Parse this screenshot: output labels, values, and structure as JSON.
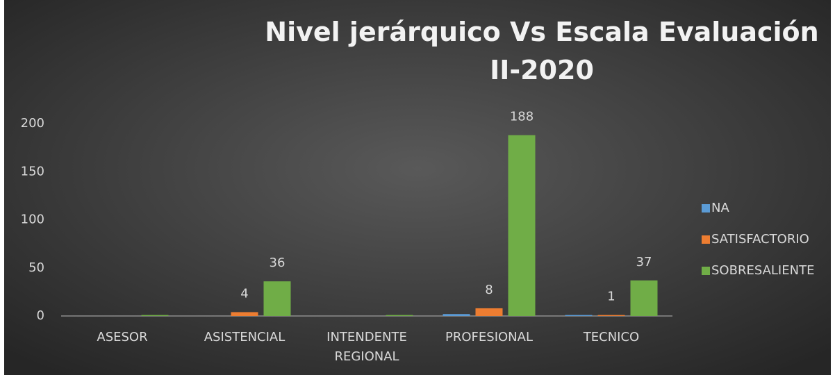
{
  "chart_data": {
    "type": "bar",
    "title": "Nivel jerárquico Vs Escala Evaluación II-2020",
    "categories": [
      "ASESOR",
      "ASISTENCIAL",
      "INTENDENTE REGIONAL",
      "PROFESIONAL",
      "TECNICO"
    ],
    "series": [
      {
        "name": "NA",
        "color": "#5b9bd5",
        "values": [
          0,
          0,
          0,
          2,
          1
        ],
        "value_labels": [
          null,
          null,
          null,
          null,
          null
        ]
      },
      {
        "name": "SATISFACTORIO",
        "color": "#ed7d31",
        "values": [
          0,
          4,
          0,
          8,
          1
        ],
        "value_labels": [
          null,
          "4",
          null,
          "8",
          "1"
        ]
      },
      {
        "name": "SOBRESALIENTE",
        "color": "#70ad47",
        "values": [
          1,
          36,
          1,
          188,
          37
        ],
        "value_labels": [
          null,
          "36",
          null,
          "188",
          "37"
        ]
      }
    ],
    "ylim": [
      0,
      200
    ],
    "yticks": [
      0,
      50,
      100,
      150,
      200
    ],
    "grid": false,
    "legend": "right"
  }
}
